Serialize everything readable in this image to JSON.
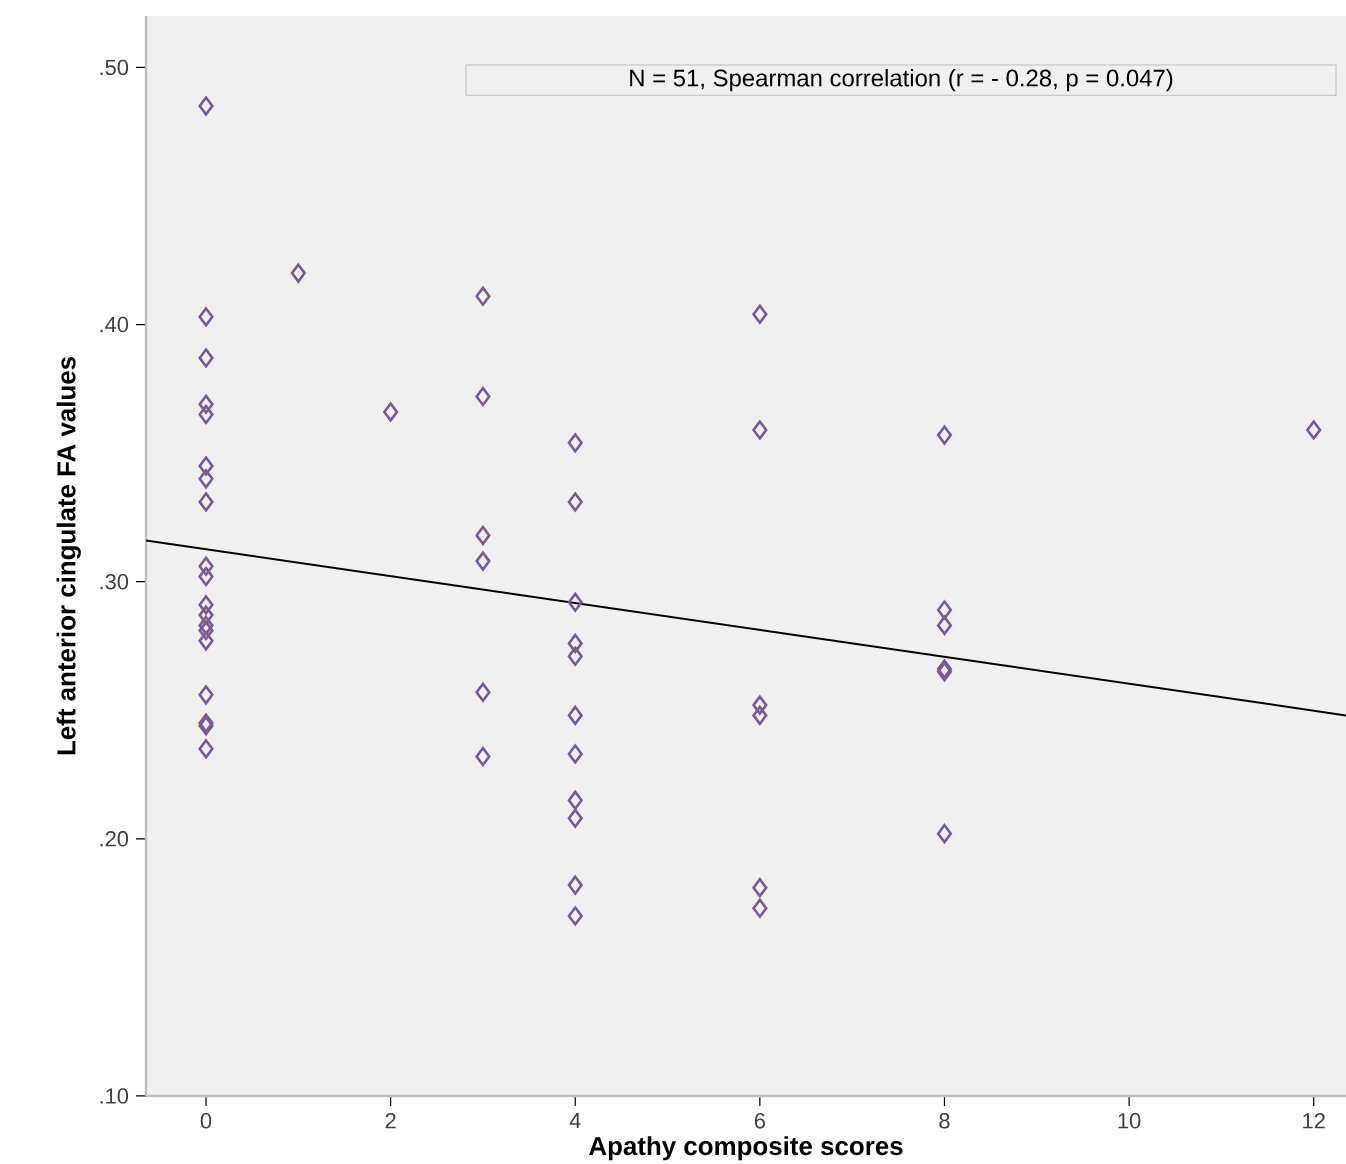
{
  "chart_data": {
    "type": "scatter",
    "xlabel": "Apathy composite scores",
    "ylabel": "Left anterior cingulate FA values",
    "annotations": [
      "N = 51, Spearman correlation (r = - 0.28, p = 0.047)"
    ],
    "xlim": [
      -0.65,
      12.35
    ],
    "ylim": [
      0.1,
      0.52
    ],
    "xticks": [
      0,
      2,
      4,
      6,
      8,
      10,
      12
    ],
    "yticks": [
      {
        "value": 0.1,
        "label": ".10"
      },
      {
        "value": 0.2,
        "label": ".20"
      },
      {
        "value": 0.3,
        "label": ".30"
      },
      {
        "value": 0.4,
        "label": ".40"
      },
      {
        "value": 0.5,
        "label": ".50"
      }
    ],
    "grid": false,
    "marker": "diamond",
    "series": [
      {
        "color": "#7a5a94",
        "x": [
          0,
          0,
          0,
          0,
          0,
          0,
          0,
          0,
          0,
          0,
          0,
          0,
          0,
          0,
          0,
          0,
          0,
          0,
          0,
          1,
          2,
          3,
          3,
          3,
          3,
          3,
          3,
          4,
          4,
          4,
          4,
          4,
          4,
          4,
          4,
          4,
          4,
          4,
          6,
          6,
          6,
          6,
          6,
          6,
          8,
          8,
          8,
          8,
          8,
          8,
          12
        ],
        "values": [
          0.485,
          0.403,
          0.387,
          0.369,
          0.365,
          0.345,
          0.34,
          0.331,
          0.306,
          0.302,
          0.291,
          0.287,
          0.283,
          0.281,
          0.277,
          0.256,
          0.245,
          0.244,
          0.235,
          0.42,
          0.366,
          0.411,
          0.372,
          0.318,
          0.308,
          0.257,
          0.232,
          0.354,
          0.331,
          0.292,
          0.276,
          0.271,
          0.248,
          0.233,
          0.215,
          0.208,
          0.182,
          0.17,
          0.404,
          0.359,
          0.252,
          0.248,
          0.181,
          0.173,
          0.357,
          0.289,
          0.283,
          0.266,
          0.265,
          0.202,
          0.359
        ]
      },
      {
        "type": "line",
        "color": "#000000",
        "marker": "none",
        "x": [
          -0.65,
          12.35
        ],
        "values": [
          0.316,
          0.248
        ]
      }
    ]
  }
}
